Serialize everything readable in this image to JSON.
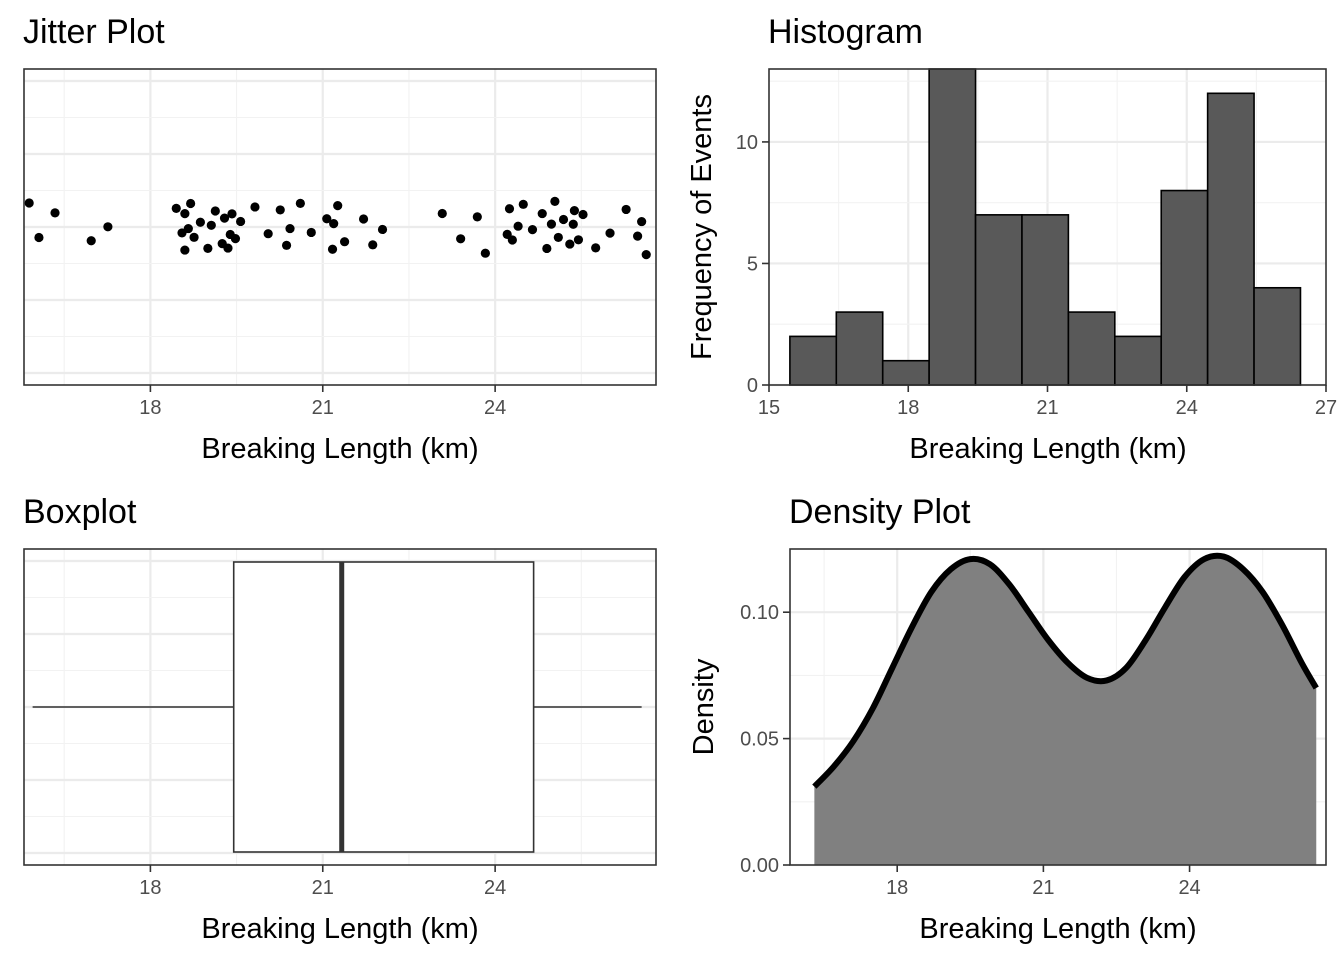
{
  "chart_data": [
    {
      "type": "scatter",
      "title": "Jitter Plot",
      "xlabel": "Breaking Length (km)",
      "ylabel": "",
      "xlim": [
        15.8,
        26.8
      ],
      "xticks": [
        "18",
        "21",
        "24"
      ],
      "grid": true,
      "points": [
        [
          15.89,
          0.0
        ],
        [
          16.06,
          0.0
        ],
        [
          16.34,
          0.0
        ],
        [
          16.97,
          0.0
        ],
        [
          17.26,
          0.0
        ],
        [
          18.45,
          0.0
        ],
        [
          18.55,
          0.0
        ],
        [
          18.6,
          0.0
        ],
        [
          18.6,
          0.0
        ],
        [
          18.66,
          0.0
        ],
        [
          18.7,
          0.0
        ],
        [
          18.76,
          0.0
        ],
        [
          18.87,
          0.0
        ],
        [
          19.0,
          0.0
        ],
        [
          19.06,
          0.0
        ],
        [
          19.13,
          0.0
        ],
        [
          19.25,
          0.0
        ],
        [
          19.29,
          0.0
        ],
        [
          19.35,
          0.0
        ],
        [
          19.39,
          0.0
        ],
        [
          19.42,
          0.0
        ],
        [
          19.48,
          0.0
        ],
        [
          19.57,
          0.0
        ],
        [
          19.82,
          0.0
        ],
        [
          20.05,
          0.0
        ],
        [
          20.26,
          0.0
        ],
        [
          20.37,
          0.0
        ],
        [
          20.43,
          0.0
        ],
        [
          20.61,
          0.0
        ],
        [
          20.8,
          0.0
        ],
        [
          21.07,
          0.0
        ],
        [
          21.17,
          0.0
        ],
        [
          21.19,
          0.0
        ],
        [
          21.26,
          0.0
        ],
        [
          21.38,
          0.0
        ],
        [
          21.71,
          0.0
        ],
        [
          21.87,
          0.0
        ],
        [
          22.04,
          0.0
        ],
        [
          23.08,
          0.0
        ],
        [
          23.4,
          0.0
        ],
        [
          23.69,
          0.0
        ],
        [
          23.83,
          0.0
        ],
        [
          24.21,
          0.0
        ],
        [
          24.25,
          0.0
        ],
        [
          24.3,
          0.0
        ],
        [
          24.4,
          0.0
        ],
        [
          24.49,
          0.0
        ],
        [
          24.65,
          0.0
        ],
        [
          24.82,
          0.0
        ],
        [
          24.9,
          0.0
        ],
        [
          24.98,
          0.0
        ],
        [
          25.04,
          0.0
        ],
        [
          25.1,
          0.0
        ],
        [
          25.19,
          0.0
        ],
        [
          25.3,
          0.0
        ],
        [
          25.36,
          0.0
        ],
        [
          25.38,
          0.0
        ],
        [
          25.45,
          0.0
        ],
        [
          25.53,
          0.0
        ],
        [
          25.75,
          0.0
        ],
        [
          26.0,
          0.0
        ],
        [
          26.28,
          0.0
        ],
        [
          26.48,
          0.0
        ],
        [
          26.55,
          0.0
        ],
        [
          26.63,
          0.0
        ]
      ]
    },
    {
      "type": "bar",
      "title": "Histogram",
      "xlabel": "Breaking Length (km)",
      "ylabel": "Frequency of Events",
      "xlim": [
        15.0,
        27.0
      ],
      "ylim": [
        0,
        13
      ],
      "xticks": [
        "15",
        "18",
        "21",
        "24",
        "27"
      ],
      "yticks": [
        "0",
        "5",
        "10"
      ],
      "grid": true,
      "bins": [
        {
          "x0": 15.45,
          "x1": 16.45,
          "count": 2
        },
        {
          "x0": 16.45,
          "x1": 17.45,
          "count": 3
        },
        {
          "x0": 17.45,
          "x1": 18.45,
          "count": 1
        },
        {
          "x0": 18.45,
          "x1": 19.45,
          "count": 13
        },
        {
          "x0": 19.45,
          "x1": 20.45,
          "count": 7
        },
        {
          "x0": 20.45,
          "x1": 21.45,
          "count": 7
        },
        {
          "x0": 21.45,
          "x1": 22.45,
          "count": 3
        },
        {
          "x0": 22.45,
          "x1": 23.45,
          "count": 2
        },
        {
          "x0": 23.45,
          "x1": 24.45,
          "count": 8
        },
        {
          "x0": 24.45,
          "x1": 25.45,
          "count": 12
        },
        {
          "x0": 25.45,
          "x1": 26.45,
          "count": 4
        }
      ]
    },
    {
      "type": "box",
      "title": "Boxplot",
      "xlabel": "Breaking Length (km)",
      "ylabel": "",
      "xlim": [
        15.8,
        26.8
      ],
      "xticks": [
        "18",
        "21",
        "24"
      ],
      "grid": true,
      "whisker_low": 15.95,
      "q1": 19.45,
      "median": 21.33,
      "q3": 24.67,
      "whisker_high": 26.55
    },
    {
      "type": "area",
      "title": "Density Plot",
      "xlabel": "Breaking Length (km)",
      "ylabel": "Density",
      "xlim": [
        15.8,
        26.8
      ],
      "ylim": [
        0,
        0.125
      ],
      "xticks": [
        "18",
        "21",
        "24"
      ],
      "yticks": [
        "0.00",
        "0.05",
        "0.10"
      ],
      "grid": true,
      "x": [
        16.3,
        16.7,
        17.1,
        17.5,
        17.9,
        18.3,
        18.7,
        19.1,
        19.5,
        19.9,
        20.3,
        20.7,
        21.1,
        21.5,
        21.9,
        22.3,
        22.7,
        23.1,
        23.5,
        23.9,
        24.3,
        24.7,
        25.1,
        25.5,
        25.9,
        26.3,
        26.6
      ],
      "y": [
        0.031,
        0.039,
        0.049,
        0.062,
        0.078,
        0.094,
        0.108,
        0.117,
        0.121,
        0.119,
        0.111,
        0.1,
        0.089,
        0.08,
        0.074,
        0.073,
        0.078,
        0.089,
        0.102,
        0.114,
        0.121,
        0.122,
        0.117,
        0.108,
        0.095,
        0.08,
        0.07
      ]
    }
  ]
}
